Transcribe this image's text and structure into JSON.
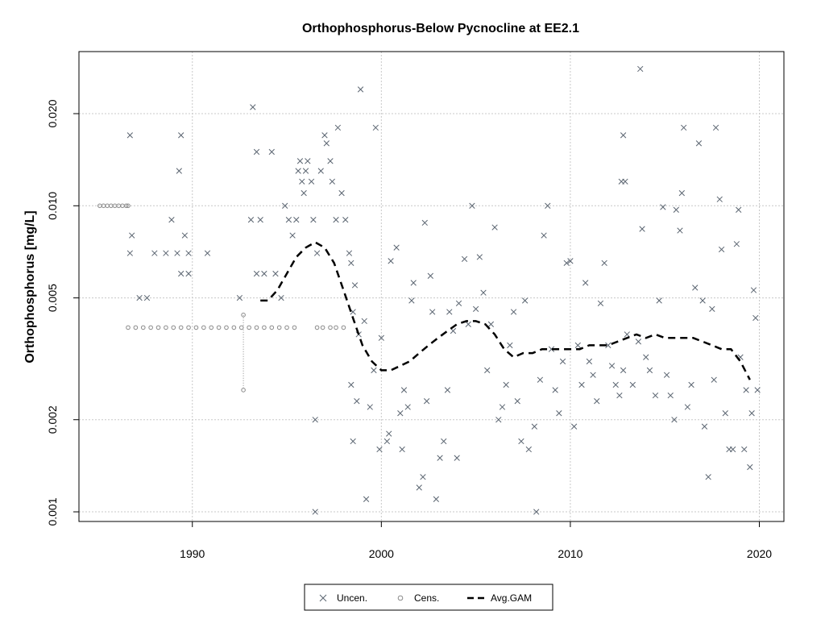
{
  "chart_data": {
    "type": "scatter",
    "title": "Orthophosphorus-Below Pycnocline at EE2.1",
    "xlabel": "",
    "ylabel": "Orthophosphorus [mg/L]",
    "y_scale": "log",
    "xlim": [
      1984.0,
      2021.3
    ],
    "ylim": [
      0.00093,
      0.0319
    ],
    "x_ticks": [
      1990,
      2000,
      2010,
      2020
    ],
    "x_tick_labels": [
      "1990",
      "2000",
      "2010",
      "2020"
    ],
    "y_ticks": [
      0.001,
      0.002,
      0.005,
      0.01,
      0.02
    ],
    "y_tick_labels": [
      "0.001",
      "0.002",
      "0.005",
      "0.010",
      "0.020"
    ],
    "grid": true,
    "legend_position": "bottom",
    "legend": [
      {
        "label": "Uncen.",
        "marker": "x"
      },
      {
        "label": "Cens.",
        "marker": "o"
      },
      {
        "label": "Avg.GAM",
        "marker": "dashed-line"
      }
    ],
    "colors": {
      "uncensored": "#5a6470",
      "censored": "#8a8a8a",
      "gam": "#000000",
      "grid": "#c8c8c8"
    },
    "series": [
      {
        "name": "Uncen.",
        "marker": "x",
        "points": [
          [
            1986.7,
            0.017
          ],
          [
            1986.7,
            0.007
          ],
          [
            1986.8,
            0.008
          ],
          [
            1987.2,
            0.005
          ],
          [
            1987.6,
            0.005
          ],
          [
            1988.0,
            0.007
          ],
          [
            1988.6,
            0.007
          ],
          [
            1988.9,
            0.009
          ],
          [
            1989.2,
            0.007
          ],
          [
            1989.4,
            0.006
          ],
          [
            1989.3,
            0.013
          ],
          [
            1989.4,
            0.017
          ],
          [
            1989.6,
            0.008
          ],
          [
            1989.8,
            0.007
          ],
          [
            1989.8,
            0.006
          ],
          [
            1990.8,
            0.007
          ],
          [
            1992.5,
            0.005
          ],
          [
            1993.2,
            0.021
          ],
          [
            1993.1,
            0.009
          ],
          [
            1993.4,
            0.015
          ],
          [
            1993.6,
            0.009
          ],
          [
            1993.4,
            0.006
          ],
          [
            1993.8,
            0.006
          ],
          [
            1994.2,
            0.015
          ],
          [
            1994.4,
            0.006
          ],
          [
            1994.7,
            0.005
          ],
          [
            1994.9,
            0.01
          ],
          [
            1995.1,
            0.009
          ],
          [
            1995.3,
            0.008
          ],
          [
            1995.5,
            0.009
          ],
          [
            1995.6,
            0.013
          ],
          [
            1995.7,
            0.014
          ],
          [
            1995.8,
            0.012
          ],
          [
            1995.9,
            0.011
          ],
          [
            1996.0,
            0.013
          ],
          [
            1996.1,
            0.014
          ],
          [
            1996.3,
            0.012
          ],
          [
            1996.4,
            0.009
          ],
          [
            1996.6,
            0.007
          ],
          [
            1996.5,
            0.002
          ],
          [
            1996.5,
            0.001
          ],
          [
            1996.8,
            0.013
          ],
          [
            1997.0,
            0.017
          ],
          [
            1997.1,
            0.016
          ],
          [
            1997.3,
            0.014
          ],
          [
            1997.4,
            0.012
          ],
          [
            1997.6,
            0.009
          ],
          [
            1997.7,
            0.018
          ],
          [
            1997.9,
            0.011
          ],
          [
            1998.1,
            0.009
          ],
          [
            1998.3,
            0.007
          ],
          [
            1998.4,
            0.0065
          ],
          [
            1998.6,
            0.0055
          ],
          [
            1998.5,
            0.0045
          ],
          [
            1998.4,
            0.0026
          ],
          [
            1998.7,
            0.0023
          ],
          [
            1998.8,
            0.0038
          ],
          [
            1998.5,
            0.0017
          ],
          [
            1998.9,
            0.024
          ],
          [
            1999.1,
            0.0042
          ],
          [
            1999.2,
            0.0011
          ],
          [
            1999.4,
            0.0022
          ],
          [
            1999.6,
            0.0029
          ],
          [
            1999.7,
            0.018
          ],
          [
            1999.9,
            0.0016
          ],
          [
            2000.0,
            0.0037
          ],
          [
            2000.3,
            0.0017
          ],
          [
            2000.4,
            0.0018
          ],
          [
            2000.5,
            0.0066
          ],
          [
            2000.8,
            0.0073
          ],
          [
            2001.0,
            0.0021
          ],
          [
            2001.1,
            0.0016
          ],
          [
            2001.2,
            0.0025
          ],
          [
            2001.4,
            0.0022
          ],
          [
            2001.6,
            0.0049
          ],
          [
            2001.7,
            0.0056
          ],
          [
            2002.0,
            0.0012
          ],
          [
            2002.2,
            0.0013
          ],
          [
            2002.3,
            0.0088
          ],
          [
            2002.4,
            0.0023
          ],
          [
            2002.6,
            0.0059
          ],
          [
            2002.7,
            0.0045
          ],
          [
            2002.9,
            0.0011
          ],
          [
            2003.1,
            0.0015
          ],
          [
            2003.3,
            0.0017
          ],
          [
            2003.5,
            0.0025
          ],
          [
            2003.6,
            0.0045
          ],
          [
            2003.8,
            0.0039
          ],
          [
            2004.0,
            0.0015
          ],
          [
            2004.1,
            0.0048
          ],
          [
            2004.4,
            0.0067
          ],
          [
            2004.6,
            0.0041
          ],
          [
            2004.8,
            0.01
          ],
          [
            2005.0,
            0.0046
          ],
          [
            2005.2,
            0.0068
          ],
          [
            2005.4,
            0.0052
          ],
          [
            2005.6,
            0.0029
          ],
          [
            2005.8,
            0.0041
          ],
          [
            2006.0,
            0.0085
          ],
          [
            2006.2,
            0.002
          ],
          [
            2006.4,
            0.0022
          ],
          [
            2006.6,
            0.0026
          ],
          [
            2006.8,
            0.0035
          ],
          [
            2007.0,
            0.0045
          ],
          [
            2007.2,
            0.0023
          ],
          [
            2007.4,
            0.0017
          ],
          [
            2007.6,
            0.0049
          ],
          [
            2007.8,
            0.0016
          ],
          [
            2008.1,
            0.0019
          ],
          [
            2008.2,
            0.001
          ],
          [
            2008.4,
            0.0027
          ],
          [
            2008.6,
            0.008
          ],
          [
            2008.8,
            0.01
          ],
          [
            2009.0,
            0.0034
          ],
          [
            2009.2,
            0.0025
          ],
          [
            2009.4,
            0.0021
          ],
          [
            2009.6,
            0.0031
          ],
          [
            2009.8,
            0.0065
          ],
          [
            2010.0,
            0.0066
          ],
          [
            2010.2,
            0.0019
          ],
          [
            2010.4,
            0.0035
          ],
          [
            2010.6,
            0.0026
          ],
          [
            2010.8,
            0.0056
          ],
          [
            2011.0,
            0.0031
          ],
          [
            2011.2,
            0.0028
          ],
          [
            2011.4,
            0.0023
          ],
          [
            2011.6,
            0.0048
          ],
          [
            2011.8,
            0.0065
          ],
          [
            2012.0,
            0.0035
          ],
          [
            2012.2,
            0.003
          ],
          [
            2012.4,
            0.0026
          ],
          [
            2012.6,
            0.0024
          ],
          [
            2012.8,
            0.0029
          ],
          [
            2012.7,
            0.012
          ],
          [
            2012.9,
            0.012
          ],
          [
            2012.8,
            0.017
          ],
          [
            2013.0,
            0.0038
          ],
          [
            2013.3,
            0.0026
          ],
          [
            2013.6,
            0.0036
          ],
          [
            2013.7,
            0.028
          ],
          [
            2013.8,
            0.0084
          ],
          [
            2014.0,
            0.0032
          ],
          [
            2014.2,
            0.0029
          ],
          [
            2014.5,
            0.0024
          ],
          [
            2014.7,
            0.0049
          ],
          [
            2014.9,
            0.0099
          ],
          [
            2015.1,
            0.0028
          ],
          [
            2015.3,
            0.0024
          ],
          [
            2015.5,
            0.002
          ],
          [
            2015.6,
            0.0097
          ],
          [
            2015.8,
            0.0083
          ],
          [
            2015.9,
            0.011
          ],
          [
            2016.0,
            0.018
          ],
          [
            2016.2,
            0.0022
          ],
          [
            2016.4,
            0.0026
          ],
          [
            2016.6,
            0.0054
          ],
          [
            2016.8,
            0.016
          ],
          [
            2017.0,
            0.0049
          ],
          [
            2017.1,
            0.0019
          ],
          [
            2017.3,
            0.0013
          ],
          [
            2017.5,
            0.0046
          ],
          [
            2017.6,
            0.0027
          ],
          [
            2017.7,
            0.018
          ],
          [
            2017.9,
            0.0105
          ],
          [
            2018.0,
            0.0072
          ],
          [
            2018.2,
            0.0021
          ],
          [
            2018.4,
            0.0016
          ],
          [
            2018.6,
            0.0016
          ],
          [
            2018.8,
            0.0075
          ],
          [
            2018.9,
            0.0097
          ],
          [
            2019.0,
            0.0032
          ],
          [
            2019.2,
            0.0016
          ],
          [
            2019.3,
            0.0025
          ],
          [
            2019.5,
            0.0014
          ],
          [
            2019.6,
            0.0021
          ],
          [
            2019.7,
            0.0053
          ],
          [
            2019.8,
            0.0043
          ],
          [
            2019.9,
            0.0025
          ]
        ]
      },
      {
        "name": "Cens.",
        "marker": "o",
        "points": [
          [
            1985.1,
            0.01
          ],
          [
            1985.3,
            0.01
          ],
          [
            1985.5,
            0.01
          ],
          [
            1985.7,
            0.01
          ],
          [
            1985.9,
            0.01
          ],
          [
            1986.1,
            0.01
          ],
          [
            1986.3,
            0.01
          ],
          [
            1986.5,
            0.01
          ],
          [
            1986.6,
            0.01
          ],
          [
            1986.6,
            0.004
          ],
          [
            1987.0,
            0.004
          ],
          [
            1987.4,
            0.004
          ],
          [
            1987.8,
            0.004
          ],
          [
            1988.2,
            0.004
          ],
          [
            1988.6,
            0.004
          ],
          [
            1989.0,
            0.004
          ],
          [
            1989.4,
            0.004
          ],
          [
            1989.8,
            0.004
          ],
          [
            1990.2,
            0.004
          ],
          [
            1990.6,
            0.004
          ],
          [
            1991.0,
            0.004
          ],
          [
            1991.4,
            0.004
          ],
          [
            1991.8,
            0.004
          ],
          [
            1992.2,
            0.004
          ],
          [
            1992.6,
            0.004
          ],
          [
            1993.0,
            0.004
          ],
          [
            1993.4,
            0.004
          ],
          [
            1993.8,
            0.004
          ],
          [
            1994.2,
            0.004
          ],
          [
            1994.6,
            0.004
          ],
          [
            1995.0,
            0.004
          ],
          [
            1995.4,
            0.004
          ],
          [
            1996.6,
            0.004
          ],
          [
            1996.9,
            0.004
          ],
          [
            1997.3,
            0.004
          ],
          [
            1997.6,
            0.004
          ],
          [
            1998.0,
            0.004
          ],
          [
            1992.7,
            0.0044
          ],
          [
            1992.7,
            0.0025
          ]
        ]
      },
      {
        "name": "Avg.GAM",
        "marker": "dashed-line",
        "points": [
          [
            1993.6,
            0.0049
          ],
          [
            1994.0,
            0.0049
          ],
          [
            1994.5,
            0.0053
          ],
          [
            1995.0,
            0.006
          ],
          [
            1995.5,
            0.0068
          ],
          [
            1996.0,
            0.0073
          ],
          [
            1996.5,
            0.0076
          ],
          [
            1997.0,
            0.0073
          ],
          [
            1997.5,
            0.0065
          ],
          [
            1998.0,
            0.0053
          ],
          [
            1998.5,
            0.0043
          ],
          [
            1999.0,
            0.0035
          ],
          [
            1999.5,
            0.0031
          ],
          [
            2000.0,
            0.0029
          ],
          [
            2000.5,
            0.0029
          ],
          [
            2001.0,
            0.003
          ],
          [
            2001.5,
            0.0031
          ],
          [
            2002.0,
            0.0033
          ],
          [
            2002.5,
            0.0035
          ],
          [
            2003.0,
            0.0037
          ],
          [
            2003.5,
            0.0039
          ],
          [
            2004.0,
            0.0041
          ],
          [
            2004.5,
            0.0042
          ],
          [
            2005.0,
            0.0042
          ],
          [
            2005.5,
            0.0041
          ],
          [
            2006.0,
            0.0038
          ],
          [
            2006.5,
            0.0034
          ],
          [
            2007.0,
            0.0032
          ],
          [
            2007.5,
            0.0033
          ],
          [
            2008.0,
            0.0033
          ],
          [
            2008.5,
            0.0034
          ],
          [
            2009.0,
            0.0034
          ],
          [
            2009.5,
            0.0034
          ],
          [
            2010.0,
            0.0034
          ],
          [
            2010.5,
            0.0034
          ],
          [
            2011.0,
            0.0035
          ],
          [
            2011.5,
            0.0035
          ],
          [
            2012.0,
            0.0035
          ],
          [
            2012.5,
            0.0036
          ],
          [
            2013.0,
            0.0037
          ],
          [
            2013.5,
            0.0038
          ],
          [
            2014.0,
            0.0037
          ],
          [
            2014.5,
            0.0038
          ],
          [
            2015.0,
            0.0037
          ],
          [
            2015.5,
            0.0037
          ],
          [
            2016.0,
            0.0037
          ],
          [
            2016.5,
            0.0037
          ],
          [
            2017.0,
            0.0036
          ],
          [
            2017.5,
            0.0035
          ],
          [
            2018.0,
            0.0034
          ],
          [
            2018.5,
            0.0034
          ],
          [
            2019.0,
            0.0031
          ],
          [
            2019.5,
            0.0027
          ]
        ]
      }
    ]
  }
}
